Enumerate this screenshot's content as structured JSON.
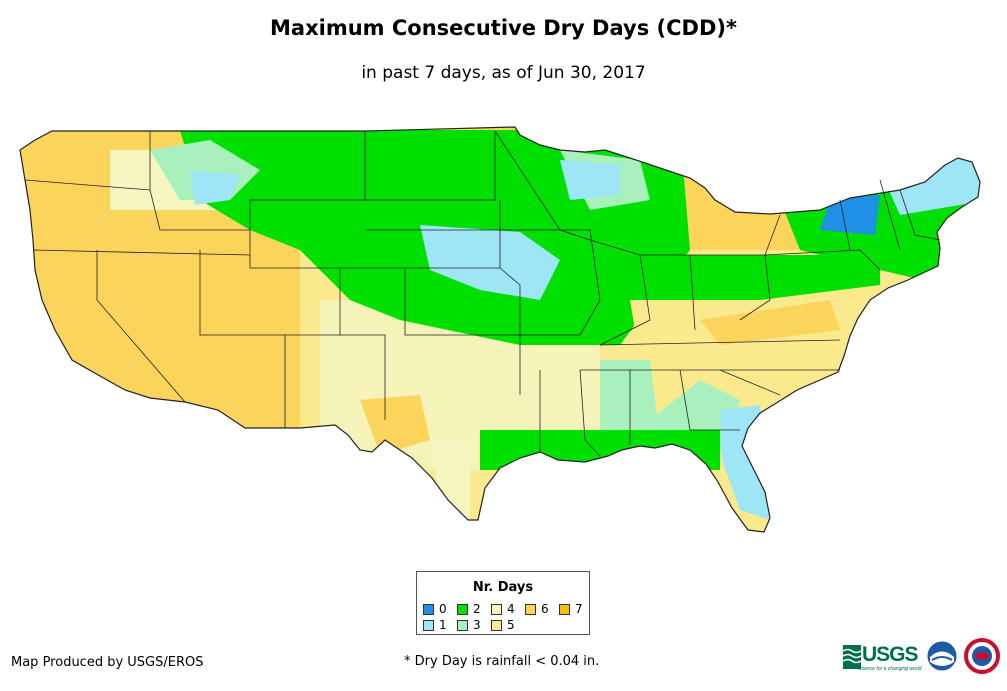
{
  "title": "Maximum Consecutive Dry Days (CDD)*",
  "subtitle": "in past 7 days, as of Jun 30, 2017",
  "legend": {
    "title": "Nr. Days",
    "items": [
      {
        "label": "0",
        "color": "#1e90e6"
      },
      {
        "label": "1",
        "color": "#9ee6f5"
      },
      {
        "label": "2",
        "color": "#00e000"
      },
      {
        "label": "3",
        "color": "#a8f0bc"
      },
      {
        "label": "4",
        "color": "#f5f5c0"
      },
      {
        "label": "5",
        "color": "#fbe98e"
      },
      {
        "label": "6",
        "color": "#fbd45c"
      },
      {
        "label": "7",
        "color": "#f5c000"
      }
    ]
  },
  "credit": "Map Produced by USGS/EROS",
  "footnote": "* Dry Day is rainfall < 0.04 in.",
  "logos": {
    "usgs": "USGS",
    "usgs_tagline": "science for a changing world"
  },
  "colors": {
    "background": "#ffffff",
    "border": "#222222"
  }
}
